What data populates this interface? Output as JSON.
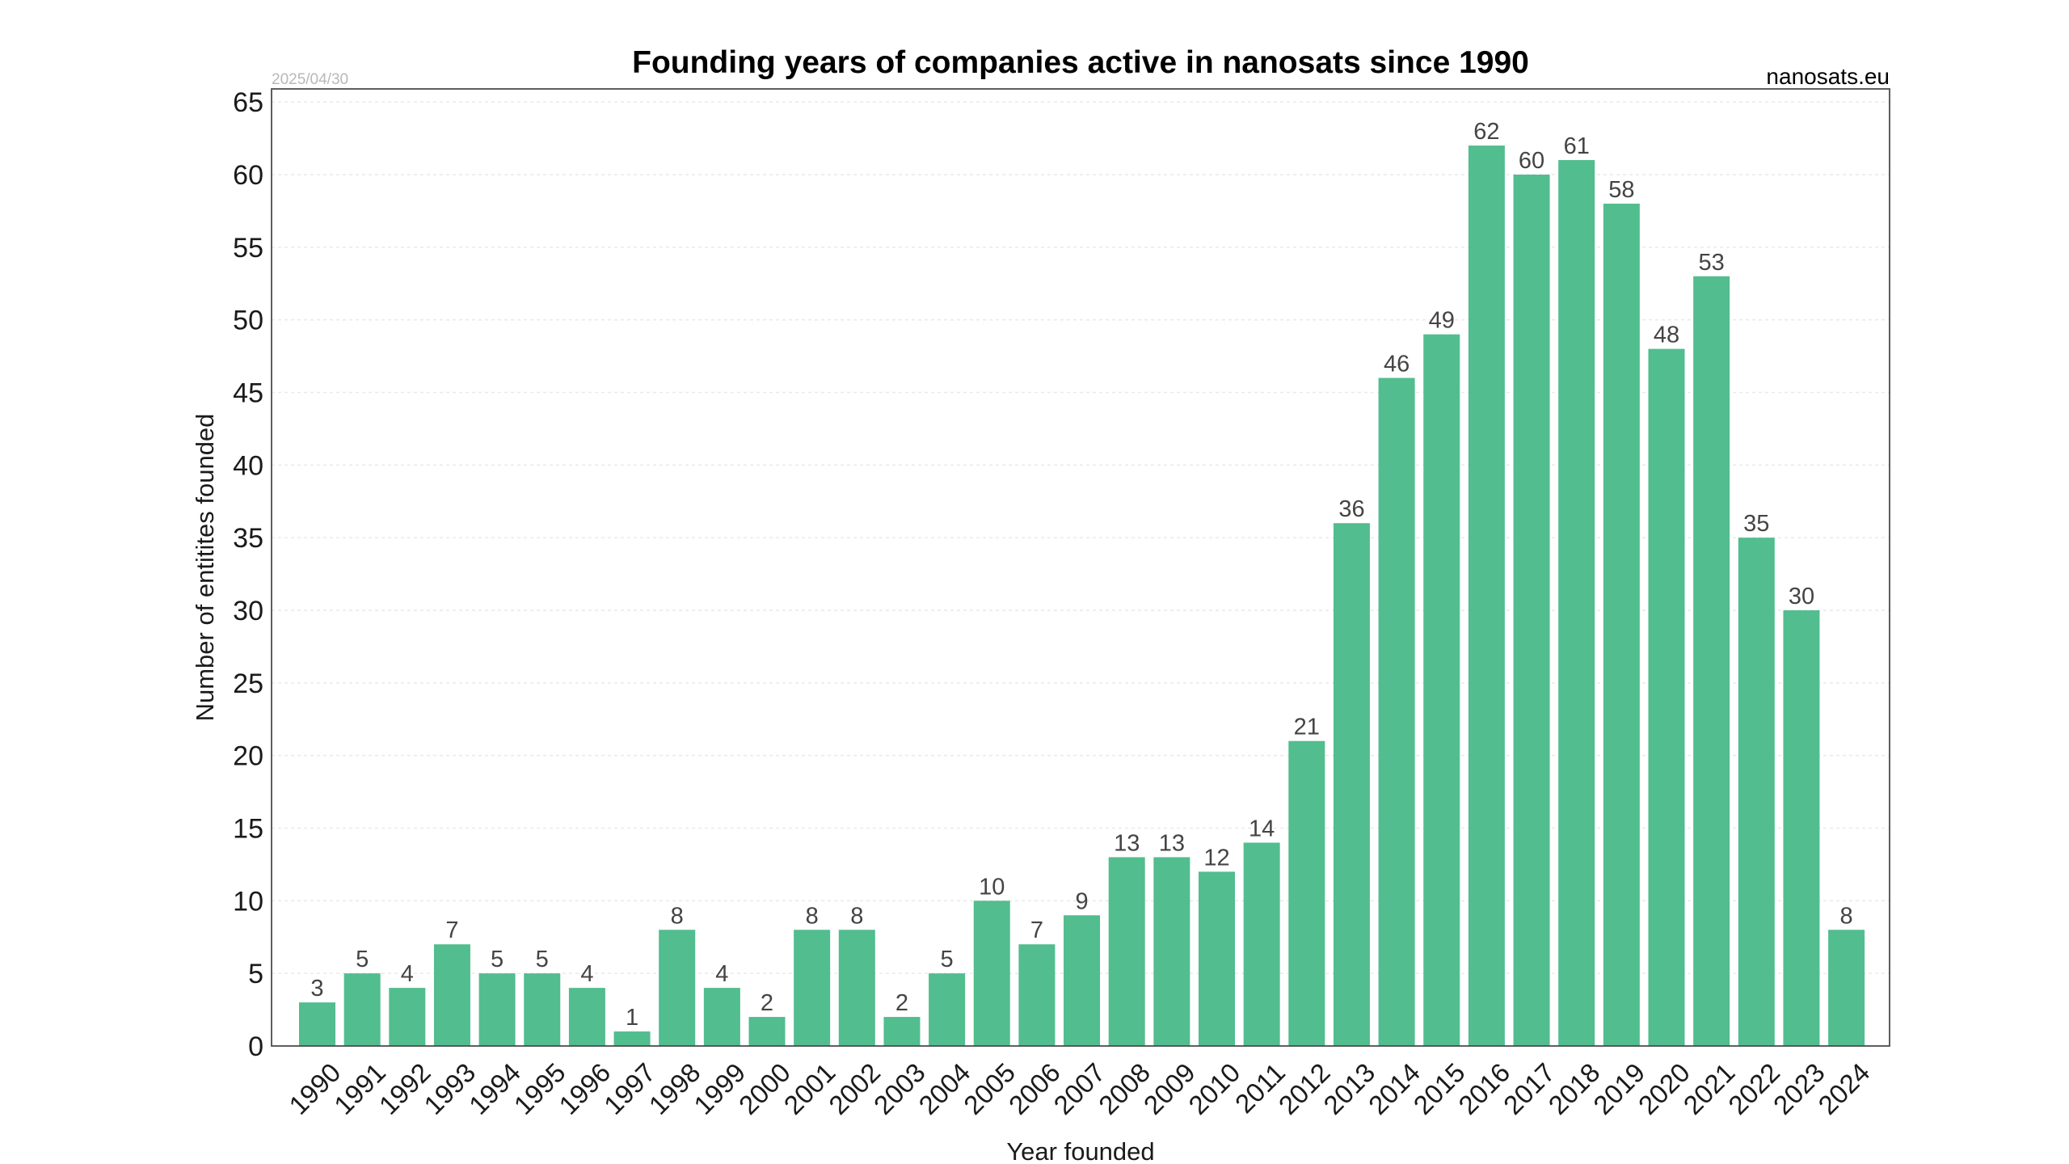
{
  "chart_data": {
    "type": "bar",
    "title": "Founding years of companies active in nanosats since 1990",
    "date_label": "2025/04/30",
    "source_label": "nanosats.eu",
    "xlabel": "Year founded",
    "ylabel": "Number of entitites founded",
    "ylim": [
      0,
      65
    ],
    "yticks": [
      0,
      5,
      10,
      15,
      20,
      25,
      30,
      35,
      40,
      45,
      50,
      55,
      60,
      65
    ],
    "grid": true,
    "legend": "none",
    "bar_color": "#52bd8e",
    "categories": [
      "1990",
      "1991",
      "1992",
      "1993",
      "1994",
      "1995",
      "1996",
      "1997",
      "1998",
      "1999",
      "2000",
      "2001",
      "2002",
      "2003",
      "2004",
      "2005",
      "2006",
      "2007",
      "2008",
      "2009",
      "2010",
      "2011",
      "2012",
      "2013",
      "2014",
      "2015",
      "2016",
      "2017",
      "2018",
      "2019",
      "2020",
      "2021",
      "2022",
      "2023",
      "2024"
    ],
    "values": [
      3,
      5,
      4,
      7,
      5,
      5,
      4,
      1,
      8,
      4,
      2,
      8,
      8,
      2,
      5,
      10,
      7,
      9,
      13,
      13,
      12,
      14,
      21,
      36,
      46,
      49,
      62,
      60,
      61,
      58,
      48,
      53,
      35,
      30,
      8
    ]
  }
}
